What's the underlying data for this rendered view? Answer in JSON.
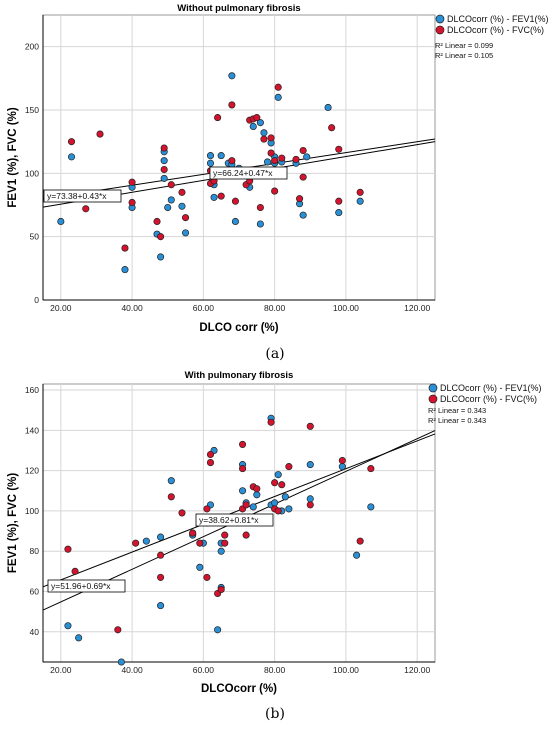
{
  "colors": {
    "fev1": "#2b8fd6",
    "fvc": "#d4142e",
    "marker_edge": "#222222"
  },
  "chart_data": [
    {
      "type": "scatter",
      "panel": "(a)",
      "title": "Without pulmonary fibrosis",
      "xlabel": "DLCO corr (%)",
      "ylabel": "FEV1 (%), FVC (%)",
      "xlim": [
        15,
        125
      ],
      "ylim": [
        0,
        225
      ],
      "xticks": [
        "20.00",
        "40.00",
        "60.00",
        "80.00",
        "100.00",
        "120.00"
      ],
      "yticks": [
        "0",
        "50",
        "100",
        "150",
        "200"
      ],
      "grid": true,
      "legend_position": "top-right",
      "series": [
        {
          "name": "DLCOcorr (%) - FEV1(%)",
          "color": "#2b8fd6",
          "x": [
            20,
            23,
            38,
            40,
            40,
            47,
            48,
            49,
            49,
            49,
            50,
            51,
            54,
            55,
            62,
            62,
            63,
            63,
            65,
            67,
            68,
            68,
            68,
            69,
            70,
            73,
            74,
            74,
            76,
            76,
            77,
            78,
            79,
            80,
            80,
            81,
            82,
            86,
            87,
            88,
            89,
            95,
            98,
            104
          ],
          "y": [
            62,
            113,
            24,
            73,
            89,
            52,
            34,
            110,
            117,
            96,
            73,
            79,
            74,
            53,
            108,
            114,
            91,
            81,
            114,
            108,
            177,
            101,
            107,
            62,
            104,
            89,
            102,
            137,
            60,
            140,
            132,
            109,
            124,
            108,
            113,
            160,
            109,
            108,
            76,
            67,
            113,
            152,
            69,
            78
          ],
          "r2_label": "R² Linear = 0.099",
          "fit_label": "y=73.38+0.43*x",
          "fit": {
            "intercept": 73.38,
            "slope": 0.43
          }
        },
        {
          "name": "DLCOcorr (%) -  FVC(%)",
          "color": "#d4142e",
          "x": [
            23,
            27,
            31,
            38,
            40,
            40,
            47,
            48,
            49,
            49,
            51,
            54,
            55,
            62,
            62,
            63,
            64,
            65,
            66,
            68,
            68,
            69,
            71,
            72,
            73,
            73,
            74,
            75,
            76,
            77,
            79,
            79,
            80,
            80,
            81,
            82,
            86,
            87,
            88,
            88,
            96,
            98,
            98,
            104
          ],
          "y": [
            125,
            72,
            131,
            41,
            77,
            93,
            62,
            50,
            120,
            103,
            91,
            85,
            65,
            102,
            92,
            94,
            144,
            82,
            101,
            154,
            110,
            78,
            100,
            91,
            94,
            142,
            143,
            144,
            73,
            127,
            128,
            116,
            110,
            86,
            168,
            112,
            111,
            80,
            97,
            118,
            136,
            119,
            78,
            85
          ],
          "r2_label": "R² Linear = 0.105",
          "fit_label": "y=66.24+0.47*x",
          "fit": {
            "intercept": 66.24,
            "slope": 0.47
          }
        }
      ]
    },
    {
      "type": "scatter",
      "panel": "(b)",
      "title": "With pulmonary fibrosis",
      "xlabel": "DLCOcorr (%)",
      "ylabel": "FEV1 (%), FVC (%)",
      "xlim": [
        15,
        125
      ],
      "ylim": [
        25,
        163
      ],
      "xticks": [
        "20.00",
        "40.00",
        "60.00",
        "80.00",
        "100.00",
        "120.00"
      ],
      "yticks": [
        "40",
        "60",
        "80",
        "100",
        "120",
        "140",
        "160"
      ],
      "grid": true,
      "legend_position": "top-right",
      "series": [
        {
          "name": "DLCOcorr (%) - FEV1(%)",
          "color": "#2b8fd6",
          "x": [
            22,
            25,
            37,
            44,
            48,
            48,
            51,
            57,
            57,
            59,
            60,
            61,
            62,
            63,
            64,
            65,
            65,
            65,
            71,
            71,
            72,
            74,
            75,
            79,
            79,
            80,
            81,
            82,
            83,
            84,
            90,
            90,
            99,
            103,
            107
          ],
          "y": [
            43,
            37,
            25,
            85,
            87,
            53,
            115,
            89,
            88,
            72,
            84,
            94,
            103,
            130,
            41,
            80,
            62,
            84,
            123,
            110,
            104,
            102,
            108,
            146,
            103,
            104,
            118,
            100,
            107,
            101,
            123,
            106,
            122,
            78,
            102
          ],
          "r2_label": "R² Linear = 0.343",
          "fit_label": "y=51.96+0.69*x",
          "fit": {
            "intercept": 51.96,
            "slope": 0.69
          }
        },
        {
          "name": "DLCOcorr (%) - FVC(%)",
          "color": "#d4142e",
          "x": [
            22,
            24,
            36,
            41,
            48,
            48,
            51,
            54,
            57,
            59,
            61,
            61,
            62,
            62,
            64,
            65,
            66,
            66,
            71,
            71,
            71,
            72,
            72,
            74,
            75,
            79,
            80,
            80,
            81,
            82,
            84,
            90,
            90,
            99,
            104,
            107
          ],
          "y": [
            81,
            70,
            41,
            84,
            78,
            67,
            107,
            99,
            89,
            84,
            101,
            67,
            124,
            128,
            59,
            61,
            84,
            88,
            133,
            121,
            101,
            103,
            88,
            112,
            111,
            144,
            101,
            114,
            100,
            113,
            122,
            142,
            103,
            125,
            85,
            121
          ],
          "r2_label": "R² Linear = 0.343",
          "fit_label": "y=38.62+0.81*x",
          "fit": {
            "intercept": 38.62,
            "slope": 0.81
          }
        }
      ]
    }
  ]
}
